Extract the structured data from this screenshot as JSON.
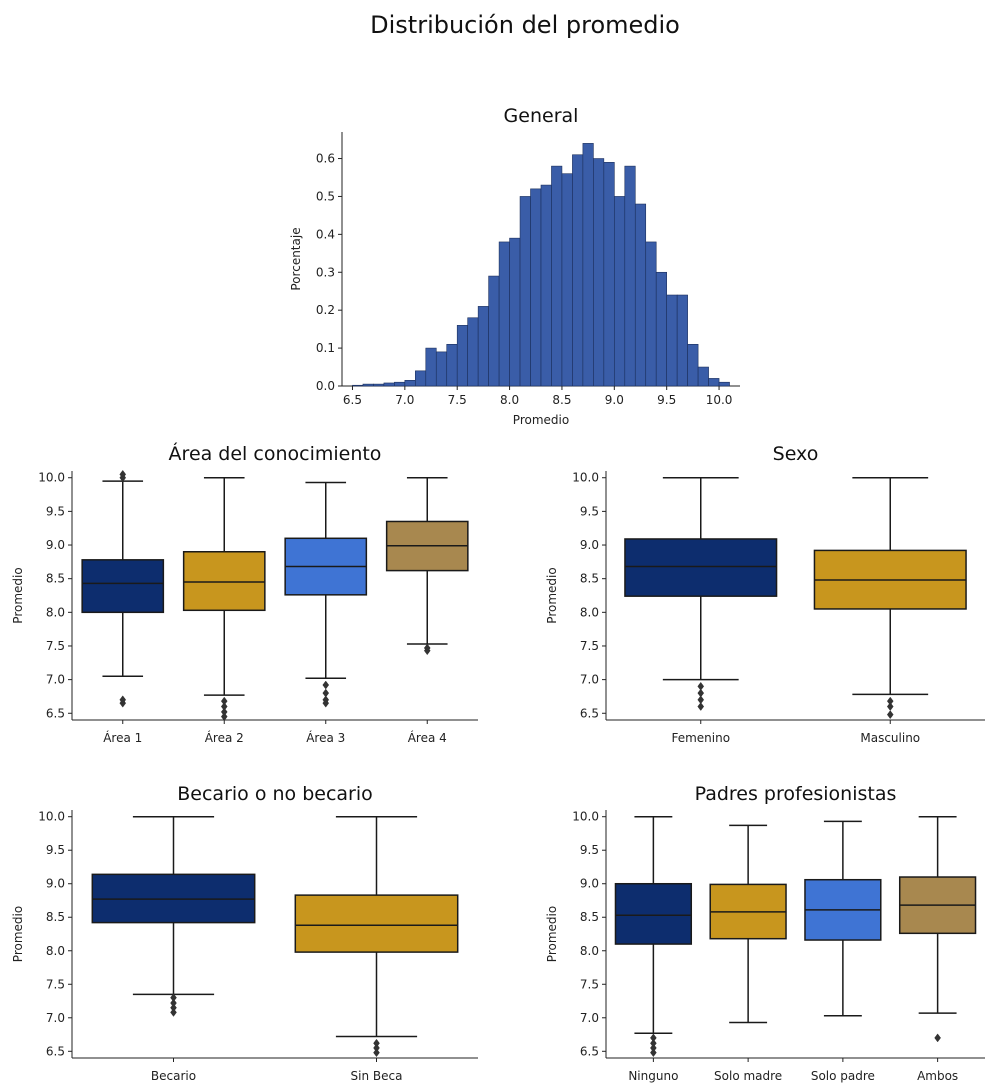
{
  "title": "Distribución del promedio",
  "colors": {
    "navy": "#0d2d6e",
    "gold": "#c8961e",
    "blue": "#3f74d4",
    "khaki": "#a8884f",
    "hist": "#3a5da8",
    "line": "#1a1a1a"
  },
  "chart_data": [
    {
      "type": "bar",
      "title": "General",
      "xlabel": "Promedio",
      "ylabel": "Porcentaje",
      "xlim": [
        6.4,
        10.2
      ],
      "ylim": [
        0,
        0.67
      ],
      "xticks": [
        6.5,
        7.0,
        7.5,
        8.0,
        8.5,
        9.0,
        9.5,
        10.0
      ],
      "yticks": [
        0.0,
        0.1,
        0.2,
        0.3,
        0.4,
        0.5,
        0.6
      ],
      "bin_width": 0.1,
      "bin_starts": [
        6.5,
        6.6,
        6.7,
        6.8,
        6.9,
        7.0,
        7.1,
        7.2,
        7.3,
        7.4,
        7.5,
        7.6,
        7.7,
        7.8,
        7.9,
        8.0,
        8.1,
        8.2,
        8.3,
        8.4,
        8.5,
        8.6,
        8.7,
        8.8,
        8.9,
        9.0,
        9.1,
        9.2,
        9.3,
        9.4,
        9.5,
        9.6,
        9.7,
        9.8,
        9.9,
        10.0
      ],
      "values": [
        0.002,
        0.005,
        0.005,
        0.008,
        0.01,
        0.015,
        0.04,
        0.1,
        0.09,
        0.11,
        0.16,
        0.18,
        0.21,
        0.29,
        0.38,
        0.39,
        0.5,
        0.52,
        0.53,
        0.58,
        0.56,
        0.61,
        0.64,
        0.6,
        0.59,
        0.5,
        0.58,
        0.48,
        0.38,
        0.3,
        0.24,
        0.24,
        0.11,
        0.05,
        0.02,
        0.01
      ]
    },
    {
      "type": "box",
      "title": "Área del conocimiento",
      "ylabel": "Promedio",
      "ylim": [
        6.4,
        10.1
      ],
      "yticks": [
        6.5,
        7.0,
        7.5,
        8.0,
        8.5,
        9.0,
        9.5,
        10.0
      ],
      "categories": [
        "Área 1",
        "Área 2",
        "Área 3",
        "Área 4"
      ],
      "boxes": [
        {
          "q1": 8.0,
          "median": 8.43,
          "q3": 8.78,
          "whisker_low": 7.05,
          "whisker_high": 9.95,
          "outliers": [
            6.65,
            6.7,
            10.0,
            10.05
          ],
          "color": "navy"
        },
        {
          "q1": 8.03,
          "median": 8.45,
          "q3": 8.9,
          "whisker_low": 6.77,
          "whisker_high": 10.0,
          "outliers": [
            6.45,
            6.52,
            6.6,
            6.68
          ],
          "color": "gold"
        },
        {
          "q1": 8.26,
          "median": 8.68,
          "q3": 9.1,
          "whisker_low": 7.02,
          "whisker_high": 9.93,
          "outliers": [
            6.65,
            6.7,
            6.8,
            6.92
          ],
          "color": "blue"
        },
        {
          "q1": 8.62,
          "median": 8.99,
          "q3": 9.35,
          "whisker_low": 7.53,
          "whisker_high": 10.0,
          "outliers": [
            7.43,
            7.47
          ],
          "color": "khaki"
        }
      ]
    },
    {
      "type": "box",
      "title": "Sexo",
      "ylabel": "Promedio",
      "ylim": [
        6.4,
        10.1
      ],
      "yticks": [
        6.5,
        7.0,
        7.5,
        8.0,
        8.5,
        9.0,
        9.5,
        10.0
      ],
      "categories": [
        "Femenino",
        "Masculino"
      ],
      "boxes": [
        {
          "q1": 8.24,
          "median": 8.68,
          "q3": 9.09,
          "whisker_low": 7.0,
          "whisker_high": 10.0,
          "outliers": [
            6.6,
            6.7,
            6.8,
            6.9
          ],
          "color": "navy"
        },
        {
          "q1": 8.05,
          "median": 8.48,
          "q3": 8.92,
          "whisker_low": 6.78,
          "whisker_high": 10.0,
          "outliers": [
            6.48,
            6.6,
            6.68
          ],
          "color": "gold"
        }
      ]
    },
    {
      "type": "box",
      "title": "Becario o no becario",
      "ylabel": "Promedio",
      "ylim": [
        6.4,
        10.1
      ],
      "yticks": [
        6.5,
        7.0,
        7.5,
        8.0,
        8.5,
        9.0,
        9.5,
        10.0
      ],
      "categories": [
        "Becario",
        "Sin Beca"
      ],
      "boxes": [
        {
          "q1": 8.42,
          "median": 8.77,
          "q3": 9.14,
          "whisker_low": 7.35,
          "whisker_high": 10.0,
          "outliers": [
            7.08,
            7.15,
            7.22,
            7.3
          ],
          "color": "navy"
        },
        {
          "q1": 7.98,
          "median": 8.38,
          "q3": 8.83,
          "whisker_low": 6.72,
          "whisker_high": 10.0,
          "outliers": [
            6.48,
            6.55,
            6.62
          ],
          "color": "gold"
        }
      ]
    },
    {
      "type": "box",
      "title": "Padres profesionistas",
      "ylabel": "Promedio",
      "ylim": [
        6.4,
        10.1
      ],
      "yticks": [
        6.5,
        7.0,
        7.5,
        8.0,
        8.5,
        9.0,
        9.5,
        10.0
      ],
      "categories": [
        "Ninguno",
        "Solo madre",
        "Solo padre",
        "Ambos"
      ],
      "boxes": [
        {
          "q1": 8.1,
          "median": 8.53,
          "q3": 9.0,
          "whisker_low": 6.77,
          "whisker_high": 10.0,
          "outliers": [
            6.48,
            6.55,
            6.62,
            6.7
          ],
          "color": "navy"
        },
        {
          "q1": 8.18,
          "median": 8.58,
          "q3": 8.99,
          "whisker_low": 6.93,
          "whisker_high": 9.87,
          "outliers": [],
          "color": "gold"
        },
        {
          "q1": 8.16,
          "median": 8.61,
          "q3": 9.06,
          "whisker_low": 7.03,
          "whisker_high": 9.93,
          "outliers": [],
          "color": "blue"
        },
        {
          "q1": 8.26,
          "median": 8.68,
          "q3": 9.1,
          "whisker_low": 7.07,
          "whisker_high": 10.0,
          "outliers": [
            6.7
          ],
          "color": "khaki"
        }
      ]
    }
  ]
}
